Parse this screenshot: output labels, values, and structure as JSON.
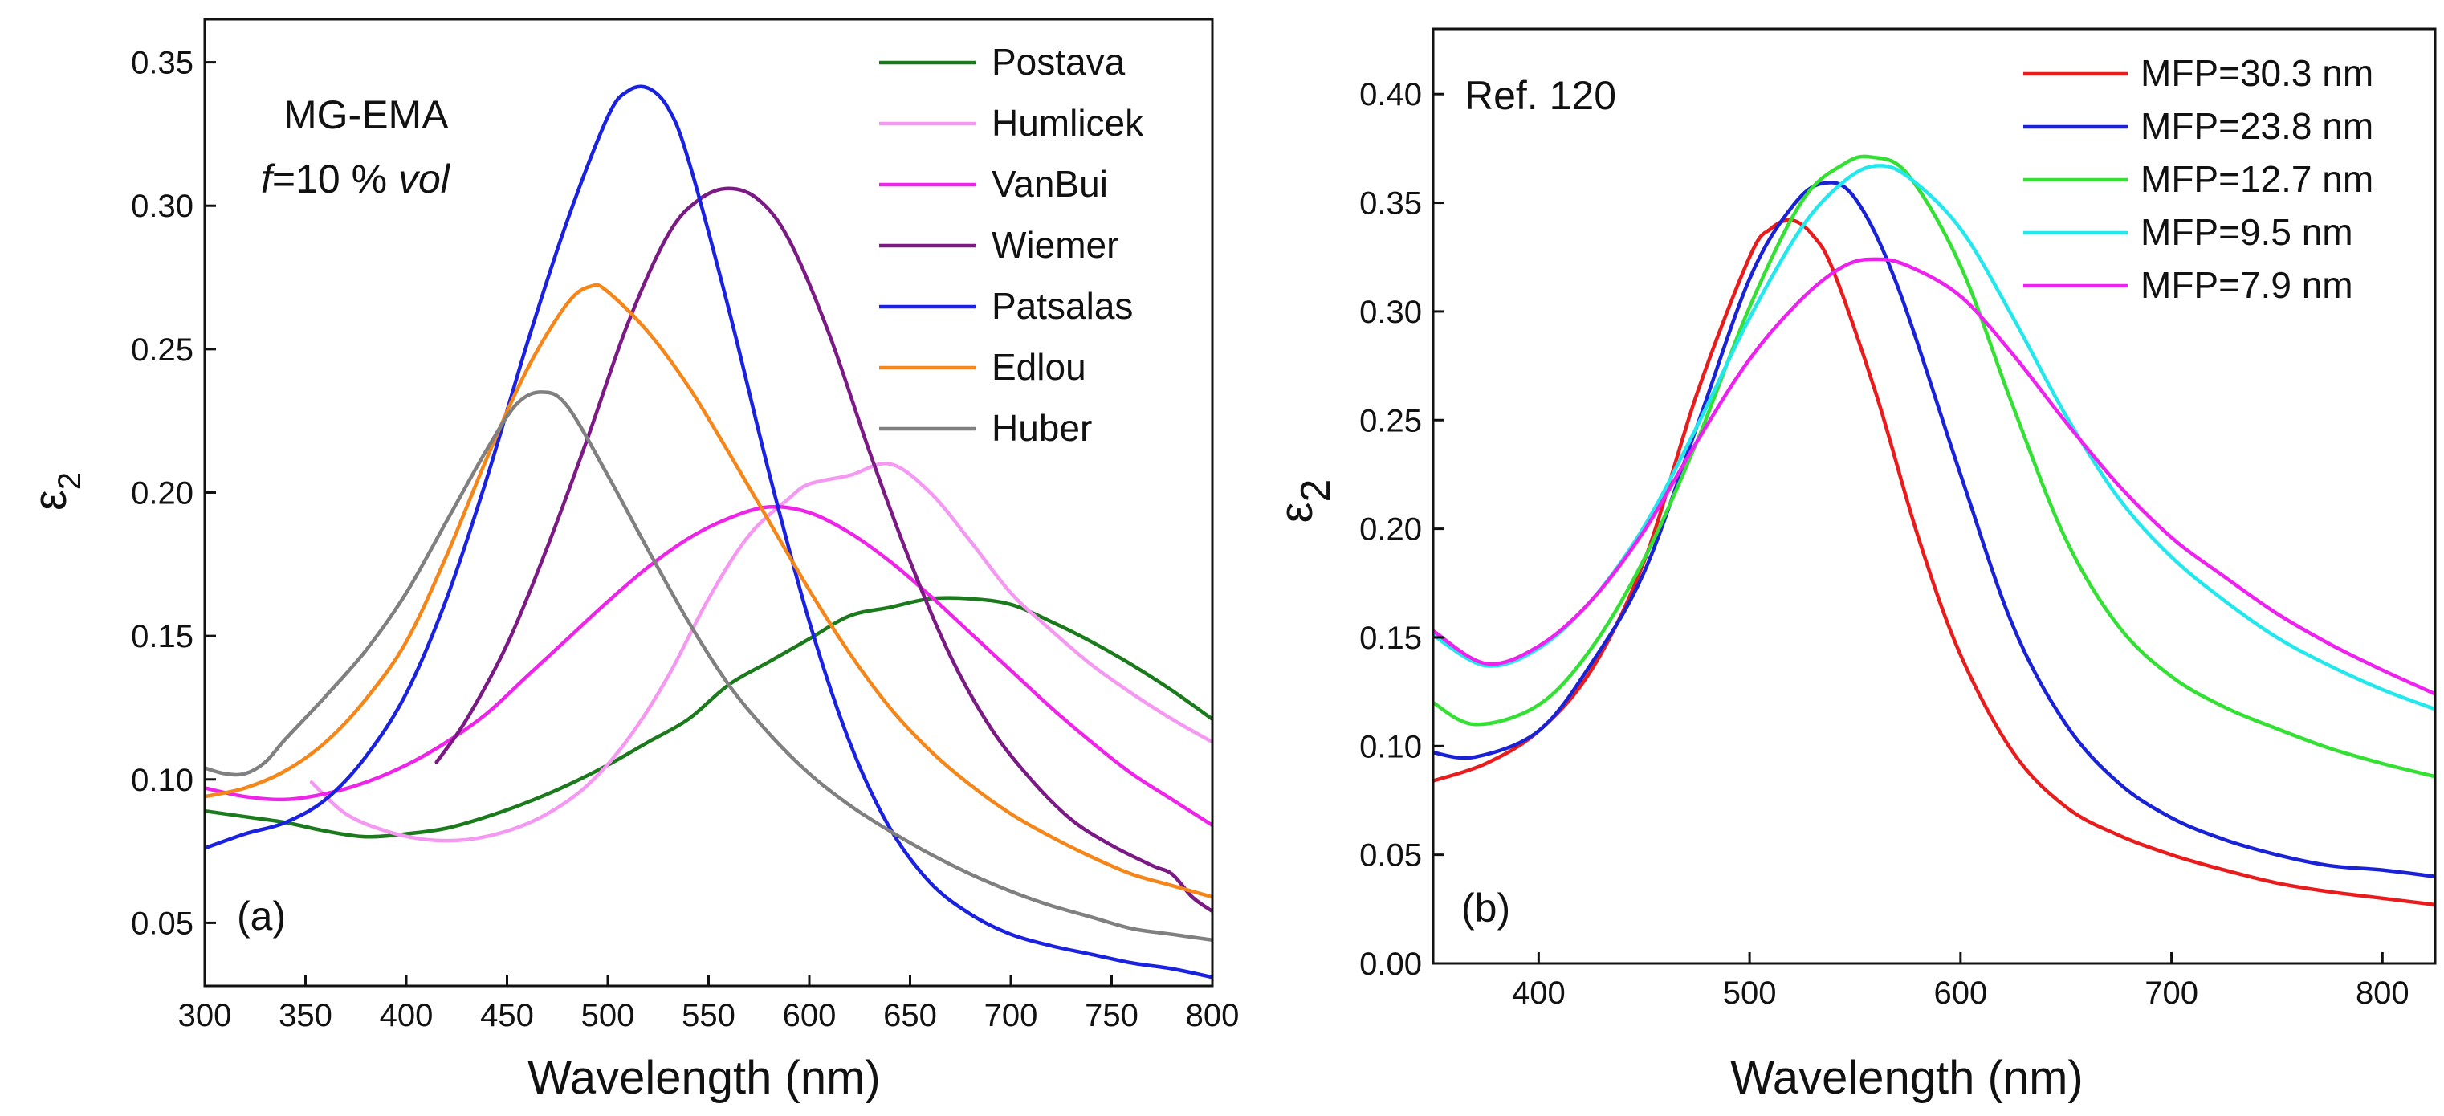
{
  "colors": {
    "Postava": "#1b7a1b",
    "Humlicek": "#f598f2",
    "VanBui": "#ee24e8",
    "Wiemer": "#7b1a84",
    "Patsalas": "#1a22e0",
    "Edlou": "#f5861a",
    "Huber": "#808080",
    "MFP=30.3 nm": "#e81c1c",
    "MFP=23.8 nm": "#1a22d6",
    "MFP=12.7 nm": "#33e033",
    "MFP=9.5 nm": "#22e8ee",
    "MFP=7.9 nm": "#ee22ee"
  },
  "chart_data": [
    {
      "type": "line",
      "panel_label": "(a)",
      "annotation_line1": "MG-EMA",
      "annotation_line2_italic_prefix": "f",
      "annotation_line2_mid": "=10 % ",
      "annotation_line2_italic_suffix": "vol",
      "xlabel": "Wavelength (nm)",
      "ylabel_symbol": "ε",
      "ylabel_sub": "2",
      "xlim": [
        300,
        800
      ],
      "ylim": [
        0.028,
        0.365
      ],
      "xticks": [
        300,
        350,
        400,
        450,
        500,
        550,
        600,
        650,
        700,
        750,
        800
      ],
      "yticks": [
        0.05,
        0.1,
        0.15,
        0.2,
        0.25,
        0.3,
        0.35
      ],
      "ytick_labels": [
        "0.05",
        "0.10",
        "0.15",
        "0.20",
        "0.25",
        "0.30",
        "0.35"
      ],
      "legend_position": "top-right",
      "series": [
        {
          "name": "Postava",
          "x": [
            300,
            320,
            340,
            360,
            380,
            400,
            420,
            440,
            460,
            480,
            500,
            520,
            540,
            560,
            580,
            600,
            620,
            640,
            660,
            680,
            700,
            720,
            740,
            760,
            780,
            800
          ],
          "y": [
            0.089,
            0.087,
            0.085,
            0.082,
            0.08,
            0.081,
            0.083,
            0.087,
            0.092,
            0.098,
            0.105,
            0.113,
            0.121,
            0.133,
            0.141,
            0.149,
            0.157,
            0.16,
            0.163,
            0.163,
            0.161,
            0.155,
            0.148,
            0.14,
            0.131,
            0.121
          ]
        },
        {
          "name": "Humlicek",
          "x": [
            353,
            370,
            390,
            410,
            430,
            450,
            470,
            490,
            510,
            530,
            550,
            570,
            590,
            600,
            620,
            640,
            660,
            680,
            700,
            720,
            740,
            760,
            780,
            800
          ],
          "y": [
            0.099,
            0.088,
            0.082,
            0.079,
            0.079,
            0.082,
            0.088,
            0.098,
            0.114,
            0.136,
            0.163,
            0.185,
            0.198,
            0.203,
            0.206,
            0.21,
            0.2,
            0.183,
            0.165,
            0.152,
            0.14,
            0.13,
            0.121,
            0.113
          ]
        },
        {
          "name": "VanBui",
          "x": [
            300,
            320,
            340,
            360,
            380,
            400,
            420,
            440,
            460,
            480,
            500,
            520,
            540,
            560,
            580,
            600,
            620,
            640,
            660,
            680,
            700,
            720,
            740,
            760,
            780,
            800
          ],
          "y": [
            0.097,
            0.094,
            0.093,
            0.095,
            0.099,
            0.105,
            0.113,
            0.123,
            0.136,
            0.149,
            0.162,
            0.174,
            0.184,
            0.191,
            0.195,
            0.193,
            0.186,
            0.176,
            0.164,
            0.151,
            0.138,
            0.125,
            0.113,
            0.102,
            0.093,
            0.084
          ]
        },
        {
          "name": "Wiemer",
          "x": [
            415,
            430,
            450,
            470,
            490,
            510,
            530,
            545,
            560,
            575,
            590,
            610,
            630,
            650,
            670,
            690,
            710,
            730,
            750,
            770,
            780,
            790,
            800
          ],
          "y": [
            0.106,
            0.121,
            0.147,
            0.181,
            0.219,
            0.259,
            0.29,
            0.302,
            0.306,
            0.302,
            0.288,
            0.255,
            0.214,
            0.176,
            0.143,
            0.118,
            0.1,
            0.086,
            0.077,
            0.07,
            0.067,
            0.059,
            0.054
          ]
        },
        {
          "name": "Patsalas",
          "x": [
            300,
            320,
            340,
            360,
            380,
            400,
            420,
            440,
            460,
            480,
            500,
            510,
            520,
            530,
            540,
            560,
            580,
            600,
            620,
            640,
            660,
            680,
            700,
            720,
            740,
            760,
            780,
            800
          ],
          "y": [
            0.076,
            0.081,
            0.085,
            0.093,
            0.108,
            0.13,
            0.163,
            0.205,
            0.252,
            0.295,
            0.331,
            0.34,
            0.341,
            0.334,
            0.316,
            0.264,
            0.207,
            0.155,
            0.113,
            0.083,
            0.064,
            0.053,
            0.046,
            0.042,
            0.039,
            0.036,
            0.034,
            0.031
          ]
        },
        {
          "name": "Edlou",
          "x": [
            300,
            320,
            340,
            360,
            380,
            400,
            420,
            440,
            460,
            480,
            492,
            500,
            520,
            540,
            560,
            580,
            600,
            620,
            640,
            660,
            680,
            700,
            720,
            740,
            760,
            780,
            800
          ],
          "y": [
            0.094,
            0.097,
            0.103,
            0.113,
            0.128,
            0.148,
            0.178,
            0.212,
            0.243,
            0.266,
            0.272,
            0.27,
            0.256,
            0.237,
            0.214,
            0.19,
            0.166,
            0.144,
            0.125,
            0.11,
            0.098,
            0.088,
            0.08,
            0.073,
            0.067,
            0.063,
            0.059
          ]
        },
        {
          "name": "Huber",
          "x": [
            300,
            310,
            320,
            330,
            340,
            360,
            380,
            400,
            420,
            440,
            455,
            468,
            480,
            500,
            520,
            540,
            560,
            580,
            600,
            620,
            640,
            660,
            680,
            700,
            720,
            740,
            760,
            780,
            800
          ],
          "y": [
            0.104,
            0.102,
            0.102,
            0.106,
            0.114,
            0.129,
            0.145,
            0.165,
            0.19,
            0.215,
            0.231,
            0.235,
            0.23,
            0.206,
            0.18,
            0.155,
            0.133,
            0.116,
            0.102,
            0.091,
            0.082,
            0.074,
            0.067,
            0.061,
            0.056,
            0.052,
            0.048,
            0.046,
            0.044
          ]
        }
      ]
    },
    {
      "type": "line",
      "panel_label": "(b)",
      "annotation_line1": "Ref. 120",
      "xlabel": "Wavelength (nm)",
      "ylabel_symbol": "ε",
      "ylabel_sub": "2",
      "xlim": [
        350,
        825
      ],
      "ylim": [
        0.0,
        0.43
      ],
      "xticks": [
        400,
        500,
        600,
        700,
        800
      ],
      "yticks": [
        0.0,
        0.05,
        0.1,
        0.15,
        0.2,
        0.25,
        0.3,
        0.35,
        0.4
      ],
      "ytick_labels": [
        "0.00",
        "0.05",
        "0.10",
        "0.15",
        "0.20",
        "0.25",
        "0.30",
        "0.35",
        "0.40"
      ],
      "legend_position": "top-right",
      "series": [
        {
          "name": "MFP=30.3 nm",
          "x": [
            350,
            375,
            400,
            425,
            450,
            475,
            500,
            510,
            520,
            530,
            540,
            560,
            580,
            600,
            625,
            650,
            675,
            700,
            725,
            750,
            775,
            800,
            825
          ],
          "y": [
            0.084,
            0.092,
            0.107,
            0.135,
            0.185,
            0.262,
            0.325,
            0.338,
            0.342,
            0.335,
            0.318,
            0.262,
            0.196,
            0.142,
            0.097,
            0.072,
            0.059,
            0.05,
            0.043,
            0.037,
            0.033,
            0.03,
            0.027
          ]
        },
        {
          "name": "MFP=23.8 nm",
          "x": [
            350,
            370,
            400,
            425,
            450,
            475,
            500,
            520,
            535,
            550,
            570,
            600,
            625,
            650,
            675,
            700,
            725,
            750,
            775,
            800,
            825
          ],
          "y": [
            0.097,
            0.095,
            0.107,
            0.138,
            0.18,
            0.247,
            0.315,
            0.348,
            0.359,
            0.352,
            0.312,
            0.225,
            0.155,
            0.11,
            0.083,
            0.067,
            0.057,
            0.05,
            0.045,
            0.043,
            0.04
          ]
        },
        {
          "name": "MFP=12.7 nm",
          "x": [
            350,
            370,
            400,
            425,
            450,
            475,
            500,
            525,
            545,
            558,
            575,
            600,
            625,
            650,
            675,
            700,
            725,
            750,
            775,
            800,
            825
          ],
          "y": [
            0.12,
            0.11,
            0.119,
            0.145,
            0.186,
            0.24,
            0.302,
            0.351,
            0.368,
            0.371,
            0.363,
            0.321,
            0.256,
            0.195,
            0.155,
            0.132,
            0.118,
            0.108,
            0.099,
            0.092,
            0.086
          ]
        },
        {
          "name": "MFP=9.5 nm",
          "x": [
            350,
            375,
            400,
            425,
            450,
            475,
            500,
            525,
            545,
            560,
            575,
            600,
            625,
            650,
            675,
            700,
            725,
            750,
            775,
            800,
            825
          ],
          "y": [
            0.151,
            0.137,
            0.145,
            0.167,
            0.201,
            0.247,
            0.297,
            0.339,
            0.36,
            0.367,
            0.362,
            0.338,
            0.297,
            0.252,
            0.214,
            0.187,
            0.167,
            0.15,
            0.137,
            0.126,
            0.117
          ]
        },
        {
          "name": "MFP=7.9 nm",
          "x": [
            350,
            375,
            400,
            425,
            450,
            475,
            500,
            525,
            545,
            560,
            575,
            600,
            625,
            650,
            675,
            700,
            725,
            750,
            775,
            800,
            825
          ],
          "y": [
            0.153,
            0.138,
            0.146,
            0.167,
            0.199,
            0.24,
            0.278,
            0.306,
            0.321,
            0.324,
            0.321,
            0.307,
            0.28,
            0.249,
            0.22,
            0.196,
            0.178,
            0.161,
            0.147,
            0.135,
            0.124
          ]
        }
      ]
    }
  ]
}
